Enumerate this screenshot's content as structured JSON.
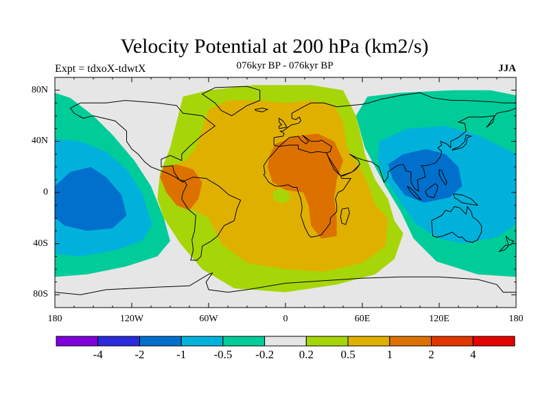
{
  "title": "Velocity Potential at 200 hPa (km2/s)",
  "left_label": "Expt = tdxoX-tdwtX",
  "center_label": "076kyr BP - 076kyr BP",
  "right_label": "JJA",
  "map": {
    "projection": "cylindrical equidistant",
    "lon_range": [
      -180,
      180
    ],
    "lat_range": [
      -90,
      90
    ],
    "lat_ticks": [
      {
        "lat": 80,
        "label": "80N"
      },
      {
        "lat": 40,
        "label": "40N"
      },
      {
        "lat": 0,
        "label": "0"
      },
      {
        "lat": -40,
        "label": "40S"
      },
      {
        "lat": -80,
        "label": "80S"
      }
    ],
    "lon_ticks": [
      {
        "lon": -180,
        "label": "180"
      },
      {
        "lon": -120,
        "label": "120W"
      },
      {
        "lon": -60,
        "label": "60W"
      },
      {
        "lon": 0,
        "label": "0"
      },
      {
        "lon": 60,
        "label": "60E"
      },
      {
        "lon": 120,
        "label": "120E"
      },
      {
        "lon": 180,
        "label": "180"
      }
    ],
    "fields": [
      {
        "name": "pacific-west",
        "color": "#00CC99",
        "poly": [
          [
            -180,
            78
          ],
          [
            -168,
            74
          ],
          [
            -150,
            60
          ],
          [
            -135,
            45
          ],
          [
            -118,
            25
          ],
          [
            -105,
            5
          ],
          [
            -95,
            -20
          ],
          [
            -90,
            -38
          ],
          [
            -100,
            -50
          ],
          [
            -125,
            -58
          ],
          [
            -155,
            -64
          ],
          [
            -180,
            -66
          ]
        ]
      },
      {
        "name": "pacific-west",
        "color": "#00B2DB",
        "poly": [
          [
            -180,
            42
          ],
          [
            -160,
            40
          ],
          [
            -140,
            32
          ],
          [
            -124,
            18
          ],
          [
            -112,
            0
          ],
          [
            -104,
            -25
          ],
          [
            -112,
            -38
          ],
          [
            -132,
            -45
          ],
          [
            -160,
            -50
          ],
          [
            -180,
            -48
          ]
        ]
      },
      {
        "name": "pacific-west",
        "color": "#0070CC",
        "poly": [
          [
            -180,
            5
          ],
          [
            -168,
            16
          ],
          [
            -152,
            20
          ],
          [
            -140,
            12
          ],
          [
            -128,
            -2
          ],
          [
            -124,
            -18
          ],
          [
            -135,
            -28
          ],
          [
            -155,
            -30
          ],
          [
            -172,
            -26
          ],
          [
            -180,
            -20
          ]
        ]
      },
      {
        "name": "asia-pacific",
        "color": "#00CC99",
        "poly": [
          [
            64,
            75
          ],
          [
            90,
            78
          ],
          [
            130,
            80
          ],
          [
            160,
            80
          ],
          [
            180,
            76
          ],
          [
            180,
            -66
          ],
          [
            150,
            -64
          ],
          [
            118,
            -54
          ],
          [
            100,
            -36
          ],
          [
            90,
            -15
          ],
          [
            78,
            5
          ],
          [
            62,
            35
          ],
          [
            55,
            60
          ]
        ]
      },
      {
        "name": "asia-pacific",
        "color": "#00B2DB",
        "poly": [
          [
            73,
            40
          ],
          [
            95,
            50
          ],
          [
            125,
            52
          ],
          [
            150,
            45
          ],
          [
            180,
            30
          ],
          [
            180,
            -25
          ],
          [
            165,
            -35
          ],
          [
            140,
            -40
          ],
          [
            120,
            -36
          ],
          [
            102,
            -25
          ],
          [
            88,
            -5
          ],
          [
            78,
            10
          ],
          [
            72,
            25
          ]
        ]
      },
      {
        "name": "asia-pacific",
        "color": "#0070CC",
        "poly": [
          [
            80,
            22
          ],
          [
            92,
            30
          ],
          [
            110,
            34
          ],
          [
            125,
            30
          ],
          [
            135,
            20
          ],
          [
            138,
            5
          ],
          [
            128,
            -4
          ],
          [
            108,
            -8
          ],
          [
            93,
            -2
          ],
          [
            84,
            10
          ]
        ]
      },
      {
        "name": "atlantic-africa",
        "color": "#A6D608",
        "poly": [
          [
            -80,
            75
          ],
          [
            -60,
            80
          ],
          [
            -25,
            84
          ],
          [
            20,
            84
          ],
          [
            45,
            80
          ],
          [
            55,
            60
          ],
          [
            60,
            40
          ],
          [
            62,
            30
          ],
          [
            70,
            10
          ],
          [
            80,
            -5
          ],
          [
            85,
            -22
          ],
          [
            92,
            -32
          ],
          [
            85,
            -52
          ],
          [
            70,
            -64
          ],
          [
            40,
            -72
          ],
          [
            0,
            -78
          ],
          [
            -40,
            -75
          ],
          [
            -65,
            -60
          ],
          [
            -82,
            -40
          ],
          [
            -95,
            -20
          ],
          [
            -100,
            -5
          ],
          [
            -98,
            15
          ],
          [
            -90,
            35
          ],
          [
            -85,
            55
          ]
        ]
      },
      {
        "name": "atlantic-africa",
        "color": "#E0B000",
        "poly": [
          [
            -60,
            65
          ],
          [
            -45,
            72
          ],
          [
            -20,
            72
          ],
          [
            0,
            70
          ],
          [
            20,
            72
          ],
          [
            38,
            68
          ],
          [
            45,
            55
          ],
          [
            48,
            35
          ],
          [
            58,
            20
          ],
          [
            65,
            5
          ],
          [
            70,
            -10
          ],
          [
            80,
            -20
          ],
          [
            78,
            -42
          ],
          [
            60,
            -55
          ],
          [
            30,
            -62
          ],
          [
            0,
            -60
          ],
          [
            -30,
            -55
          ],
          [
            -50,
            -40
          ],
          [
            -60,
            -20
          ],
          [
            -75,
            -12
          ],
          [
            -85,
            -5
          ],
          [
            -95,
            10
          ],
          [
            -90,
            20
          ],
          [
            -78,
            25
          ],
          [
            -70,
            35
          ],
          [
            -65,
            50
          ]
        ]
      },
      {
        "name": "atlantic-africa",
        "color": "#DD7100",
        "poly": [
          [
            -95,
            20
          ],
          [
            -85,
            22
          ],
          [
            -72,
            18
          ],
          [
            -65,
            8
          ],
          [
            -68,
            -5
          ],
          [
            -75,
            -14
          ],
          [
            -85,
            -10
          ],
          [
            -93,
            0
          ],
          [
            -98,
            12
          ]
        ]
      },
      {
        "name": "atlantic-africa",
        "color": "#DD7100",
        "poly": [
          [
            -8,
            38
          ],
          [
            8,
            44
          ],
          [
            25,
            46
          ],
          [
            38,
            40
          ],
          [
            45,
            25
          ],
          [
            40,
            10
          ],
          [
            38,
            -5
          ],
          [
            40,
            -20
          ],
          [
            40,
            -34
          ],
          [
            28,
            -36
          ],
          [
            20,
            -26
          ],
          [
            18,
            -10
          ],
          [
            14,
            0
          ],
          [
            0,
            2
          ],
          [
            -10,
            8
          ],
          [
            -14,
            20
          ],
          [
            -12,
            30
          ]
        ]
      },
      {
        "name": "atlantic-africa",
        "color": "#A6D608",
        "poly": [
          [
            -10,
            0
          ],
          [
            -5,
            3
          ],
          [
            2,
            1
          ],
          [
            4,
            -5
          ],
          [
            -2,
            -9
          ],
          [
            -9,
            -6
          ]
        ]
      }
    ],
    "coastline_color": "#000000"
  },
  "colorbar": {
    "colors": [
      "#7F00DB",
      "#2B2BDB",
      "#0070CC",
      "#00B2DB",
      "#00CC99",
      "#E6E6E6",
      "#A6D608",
      "#E0B000",
      "#DD7100",
      "#E03600",
      "#E60000"
    ],
    "labels": [
      "-4",
      "-2",
      "-1",
      "-0.5",
      "-0.2",
      "0.2",
      "0.5",
      "1",
      "2",
      "4"
    ]
  }
}
